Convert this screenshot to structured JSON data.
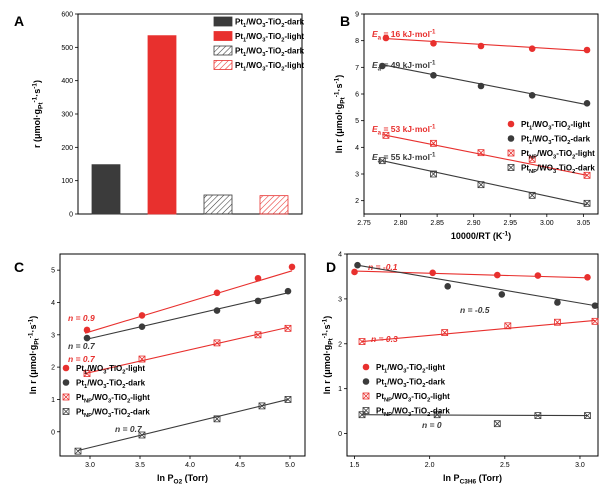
{
  "colors": {
    "light": "#e8302e",
    "dark": "#3b3b3b"
  },
  "chart_data": [
    {
      "panel": "A",
      "type": "bar",
      "ylabel": "r (μmol·gPt⁻¹·s⁻¹)",
      "ylim": [
        0,
        600
      ],
      "yticks": [
        0,
        100,
        200,
        300,
        400,
        500,
        600
      ],
      "categories": [
        "Pt1/WO3-TiO2-dark",
        "Pt1/WO3-TiO2-light",
        "Pt1/WO3-TiO2-dark",
        "Pt1/WO3-TiO2-light"
      ],
      "values": [
        148,
        535,
        57,
        55
      ],
      "legend": [
        "Pt1/WO3-TiO2-dark",
        "Pt1/WO3-TiO2-light",
        "Pt1/WO3-TiO2-dark",
        "Pt1/WO3-TiO2-light"
      ],
      "legend_position": "top-right"
    },
    {
      "panel": "B",
      "type": "scatter",
      "xlabel": "10000/RT (K⁻¹)",
      "ylabel": "ln r (μmol·gPt⁻¹·s⁻¹)",
      "xlim": [
        2.75,
        3.07
      ],
      "ylim": [
        1.5,
        9.0
      ],
      "xticks": [
        "2.75",
        "2.80",
        "2.85",
        "2.90",
        "2.95",
        "3.00",
        "3.05"
      ],
      "yticks": [
        "2",
        "3",
        "4",
        "5",
        "6",
        "7",
        "8",
        "9"
      ],
      "series": [
        {
          "name": "Pt1/WO3-TiO2-light",
          "x": [
            2.78,
            2.845,
            2.91,
            2.98,
            3.055
          ],
          "y": [
            8.1,
            7.9,
            7.8,
            7.7,
            7.65
          ],
          "fit": [
            [
              2.78,
              8.08
            ],
            [
              3.055,
              7.62
            ]
          ],
          "annotation": "Ea = 16 kJ·mol⁻¹"
        },
        {
          "name": "Pt1/WO3-TiO2-dark",
          "x": [
            2.775,
            2.845,
            2.91,
            2.98,
            3.055
          ],
          "y": [
            7.05,
            6.7,
            6.3,
            5.95,
            5.65
          ],
          "fit": [
            [
              2.775,
              7.1
            ],
            [
              3.055,
              5.6
            ]
          ],
          "annotation": "Ea = 49 kJ·mol⁻¹"
        },
        {
          "name": "PtNP/WO3-TiO2-light",
          "x": [
            2.78,
            2.845,
            2.91,
            2.98,
            3.055
          ],
          "y": [
            4.45,
            4.15,
            3.8,
            3.55,
            2.95
          ],
          "fit": [
            [
              2.775,
              4.48
            ],
            [
              3.055,
              2.95
            ]
          ],
          "annotation": "Ea = 53 kJ·mol⁻¹"
        },
        {
          "name": "PtNP/WO3-TiO2-dark",
          "x": [
            2.775,
            2.845,
            2.91,
            2.98,
            3.055
          ],
          "y": [
            3.5,
            3.0,
            2.6,
            2.2,
            1.9
          ],
          "fit": [
            [
              2.775,
              3.5
            ],
            [
              3.055,
              1.85
            ]
          ],
          "annotation": "Ea = 55 kJ·mol⁻¹"
        }
      ],
      "legend_position": "right"
    },
    {
      "panel": "C",
      "type": "scatter",
      "xlabel": "ln PO2 (Torr)",
      "ylabel": "ln r (μmol·gPt⁻¹·s⁻¹)",
      "xlim": [
        2.7,
        5.15
      ],
      "ylim": [
        -0.75,
        5.5
      ],
      "xticks": [
        "3.0",
        "3.5",
        "4.0",
        "4.5",
        "5.0"
      ],
      "yticks": [
        "0",
        "1",
        "2",
        "3",
        "4",
        "5"
      ],
      "series": [
        {
          "name": "Pt1/WO3-TiO2-light",
          "x": [
            2.97,
            3.52,
            4.27,
            4.68,
            5.02
          ],
          "y": [
            3.15,
            3.6,
            4.3,
            4.75,
            5.1
          ],
          "fit": [
            [
              2.95,
              3.05
            ],
            [
              5.02,
              4.98
            ]
          ],
          "annotation": "n = 0.9"
        },
        {
          "name": "Pt1/WO3-TiO2-dark",
          "x": [
            2.97,
            3.52,
            4.27,
            4.68,
            4.98
          ],
          "y": [
            2.9,
            3.25,
            3.75,
            4.05,
            4.35
          ],
          "fit": [
            [
              2.95,
              2.85
            ],
            [
              4.98,
              4.3
            ]
          ],
          "annotation": "n = 0.7"
        },
        {
          "name": "PtNP/WO3-TiO2-light",
          "x": [
            2.97,
            3.52,
            4.27,
            4.68,
            4.98
          ],
          "y": [
            1.8,
            2.25,
            2.75,
            3.0,
            3.2
          ],
          "fit": [
            [
              2.95,
              1.8
            ],
            [
              4.98,
              3.23
            ]
          ],
          "annotation": "n = 0.7"
        },
        {
          "name": "PtNP/WO3-TiO2-dark",
          "x": [
            2.88,
            3.52,
            4.27,
            4.72,
            4.98
          ],
          "y": [
            -0.6,
            -0.1,
            0.4,
            0.8,
            1.0
          ],
          "fit": [
            [
              2.88,
              -0.58
            ],
            [
              4.98,
              1.0
            ]
          ],
          "annotation": "n = 0.7"
        }
      ],
      "legend_position": "lower-left"
    },
    {
      "panel": "D",
      "type": "scatter",
      "xlabel": "ln PC3H6 (Torr)",
      "ylabel": "ln r (μmol·gPt⁻¹·s⁻¹)",
      "xlim": [
        1.45,
        3.12
      ],
      "ylim": [
        -0.5,
        4.0
      ],
      "xticks": [
        "1.5",
        "2.0",
        "2.5",
        "3.0"
      ],
      "yticks": [
        "0",
        "1",
        "2",
        "3",
        "4"
      ],
      "series": [
        {
          "name": "Pt1/WO3-TiO2-light",
          "x": [
            1.5,
            2.02,
            2.45,
            2.72,
            3.05
          ],
          "y": [
            3.6,
            3.58,
            3.53,
            3.52,
            3.48
          ],
          "fit": [
            [
              1.5,
              3.62
            ],
            [
              3.05,
              3.47
            ]
          ],
          "annotation": "n = -0.1"
        },
        {
          "name": "Pt1/WO3-TiO2-dark",
          "x": [
            1.52,
            2.12,
            2.48,
            2.85,
            3.1
          ],
          "y": [
            3.75,
            3.28,
            3.1,
            2.92,
            2.85
          ],
          "fit": [
            [
              1.52,
              3.75
            ],
            [
              3.1,
              2.85
            ]
          ],
          "annotation": "n = -0.5"
        },
        {
          "name": "PtNP/WO3-TiO2-light",
          "x": [
            1.55,
            2.1,
            2.52,
            2.85,
            3.1
          ],
          "y": [
            2.05,
            2.25,
            2.4,
            2.48,
            2.5
          ],
          "fit": [
            [
              1.55,
              2.05
            ],
            [
              3.1,
              2.52
            ]
          ],
          "annotation": "n = 0.3"
        },
        {
          "name": "PtNP/WO3-TiO2-dark",
          "x": [
            1.55,
            2.05,
            2.45,
            2.72,
            3.05
          ],
          "y": [
            0.42,
            0.42,
            0.22,
            0.4,
            0.4
          ],
          "fit": [
            [
              1.55,
              0.42
            ],
            [
              3.05,
              0.4
            ]
          ],
          "annotation": "n = 0"
        }
      ],
      "legend_position": "lower-left"
    }
  ]
}
